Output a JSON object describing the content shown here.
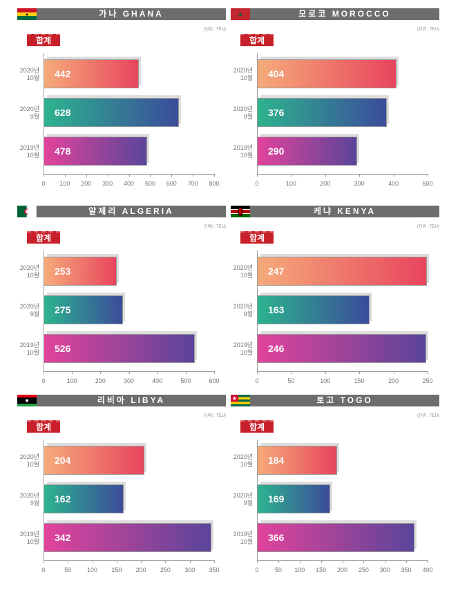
{
  "chart_data": [
    {
      "type": "bar",
      "title": "가나 GHANA",
      "flag": "ghana-flag",
      "unit": "(단위 : TEU)",
      "badge": "합계",
      "categories": [
        "2020년 10월",
        "2020년 9월",
        "2019년 10월"
      ],
      "values": [
        442,
        628,
        478
      ],
      "xlim": [
        0,
        800
      ],
      "ticks": [
        0,
        100,
        200,
        300,
        400,
        500,
        600,
        700,
        800
      ]
    },
    {
      "type": "bar",
      "title": "모로코 MOROCCO",
      "flag": "morocco-flag",
      "unit": "(단위 : TEU)",
      "badge": "합계",
      "categories": [
        "2020년 10월",
        "2020년 9월",
        "2019년 10월"
      ],
      "values": [
        404,
        376,
        290
      ],
      "xlim": [
        0,
        500
      ],
      "ticks": [
        0,
        100,
        200,
        300,
        400,
        500
      ]
    },
    {
      "type": "bar",
      "title": "알제리 ALGERIA",
      "flag": "algeria-flag",
      "unit": "(단위 : TEU)",
      "badge": "합계",
      "categories": [
        "2020년 10월",
        "2020년 9월",
        "2019년 10월"
      ],
      "values": [
        253,
        275,
        526
      ],
      "xlim": [
        0,
        600
      ],
      "ticks": [
        0,
        100,
        200,
        300,
        400,
        500,
        600
      ]
    },
    {
      "type": "bar",
      "title": "케냐 KENYA",
      "flag": "kenya-flag",
      "unit": "(단위 : TEU)",
      "badge": "합계",
      "categories": [
        "2020년 10월",
        "2020년 9월",
        "2019년 10월"
      ],
      "values": [
        247,
        163,
        246
      ],
      "xlim": [
        0,
        250
      ],
      "ticks": [
        0,
        50,
        100,
        150,
        200,
        250
      ]
    },
    {
      "type": "bar",
      "title": "리비아 LIBYA",
      "flag": "libya-flag",
      "unit": "(단위 : TEU)",
      "badge": "합계",
      "categories": [
        "2020년 10월",
        "2020년 9월",
        "2019년 10월"
      ],
      "values": [
        204,
        162,
        342
      ],
      "xlim": [
        0,
        350
      ],
      "ticks": [
        0,
        50,
        100,
        150,
        200,
        250,
        300,
        350
      ]
    },
    {
      "type": "bar",
      "title": "토고 TOGO",
      "flag": "togo-flag",
      "unit": "(단위 : TEU)",
      "badge": "합계",
      "categories": [
        "2020년 10월",
        "2020년 9월",
        "2019년 10월"
      ],
      "values": [
        184,
        169,
        366
      ],
      "xlim": [
        0,
        400
      ],
      "ticks": [
        0,
        50,
        100,
        150,
        200,
        250,
        300,
        350,
        400
      ]
    }
  ],
  "colors": {
    "title_bar": "#6d6d6d",
    "badge": "#c8202a",
    "gradients": [
      [
        "#f5ab7a",
        "#e8455e"
      ],
      [
        "#2db38e",
        "#3b4c9b"
      ],
      [
        "#e2439b",
        "#5a459a"
      ]
    ]
  }
}
